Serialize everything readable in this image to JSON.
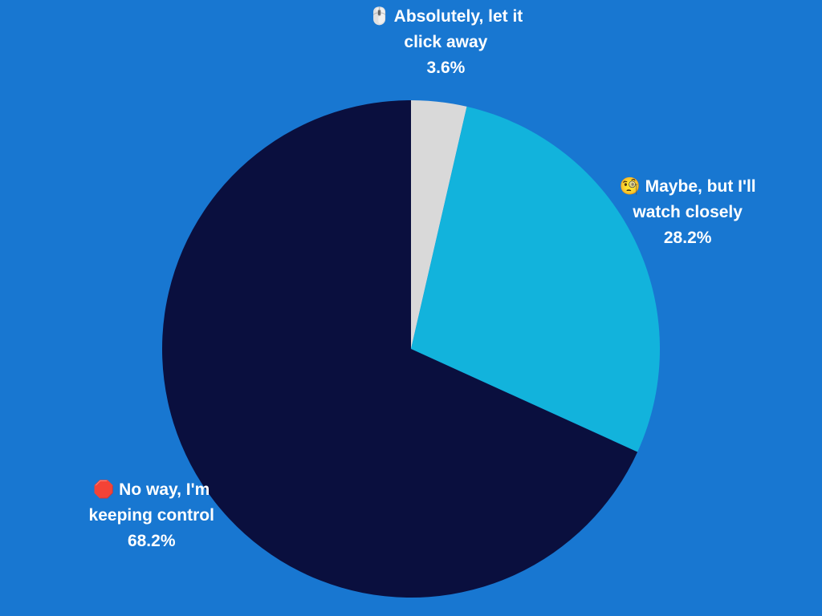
{
  "chart_data": {
    "type": "pie",
    "categories": [
      "🖱️ Absolutely, let it click away",
      "🧐 Maybe, but I'll watch closely",
      "🛑 No way, I'm keeping control"
    ],
    "values": [
      3.6,
      28.2,
      68.2
    ],
    "value_labels": [
      "3.6%",
      "28.2%",
      "68.2%"
    ],
    "colors": [
      "#d9d9d9",
      "#12b3dc",
      "#0a0f3e"
    ],
    "background": "#1877d1"
  }
}
